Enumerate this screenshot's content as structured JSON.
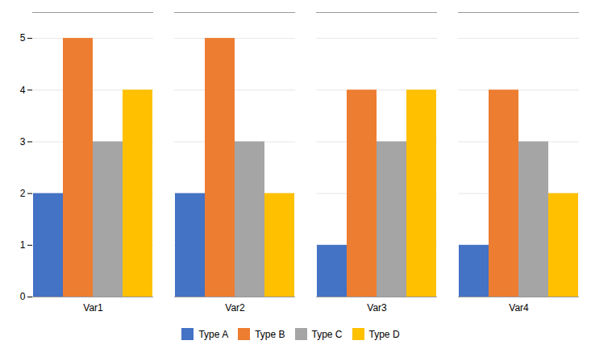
{
  "chart_data": {
    "type": "bar",
    "categories": [
      "Var1",
      "Var2",
      "Var3",
      "Var4"
    ],
    "series": [
      {
        "name": "Type A",
        "color": "#4472C4",
        "values": [
          2,
          2,
          1,
          1
        ]
      },
      {
        "name": "Type B",
        "color": "#ED7D31",
        "values": [
          5,
          5,
          4,
          4
        ]
      },
      {
        "name": "Type C",
        "color": "#A5A5A5",
        "values": [
          3,
          3,
          3,
          3
        ]
      },
      {
        "name": "Type D",
        "color": "#FFC000",
        "values": [
          4,
          2,
          4,
          2
        ]
      }
    ],
    "ylim": [
      0,
      5.5
    ],
    "yticks": [
      0,
      1,
      2,
      3,
      4,
      5
    ],
    "grid": true,
    "legend": "bottom"
  }
}
